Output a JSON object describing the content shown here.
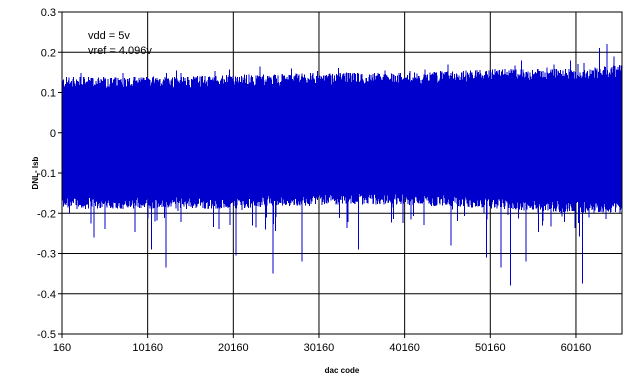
{
  "chart_data": {
    "type": "line",
    "title": "",
    "xlabel": "dac code",
    "ylabel": "DNL- lsb",
    "xlim": [
      160,
      65535
    ],
    "ylim": [
      -0.5,
      0.3
    ],
    "x_ticks": [
      160,
      10160,
      20160,
      30160,
      40160,
      50160,
      60160
    ],
    "x_tick_labels": [
      "160",
      "10160",
      "20160",
      "30160",
      "40160",
      "50160",
      "60160"
    ],
    "y_ticks": [
      0.3,
      0.2,
      0.1,
      0,
      -0.1,
      -0.2,
      -0.3,
      -0.4,
      -0.5
    ],
    "y_tick_labels": [
      "0.3",
      "0.2",
      "0.1",
      "0",
      "-0.1",
      "-0.2",
      "-0.3",
      "-0.4",
      "-0.5"
    ],
    "grid": true,
    "annotations": [
      "vdd = 5v",
      "vref = 4.096v"
    ],
    "series": [
      {
        "color": "#0000CC",
        "envelope": {
          "x": [
            160,
            10160,
            20160,
            30160,
            40160,
            50160,
            60160,
            65535
          ],
          "upper": [
            0.13,
            0.13,
            0.135,
            0.14,
            0.14,
            0.15,
            0.15,
            0.16
          ],
          "lower": [
            -0.18,
            -0.18,
            -0.18,
            -0.17,
            -0.17,
            -0.18,
            -0.19,
            -0.19
          ]
        },
        "peaks": [
          {
            "x": 13500,
            "y": 0.155
          },
          {
            "x": 45200,
            "y": 0.17
          },
          {
            "x": 53800,
            "y": 0.18
          },
          {
            "x": 59500,
            "y": 0.18
          },
          {
            "x": 62900,
            "y": 0.21
          },
          {
            "x": 63800,
            "y": 0.22
          },
          {
            "x": 64600,
            "y": 0.19
          }
        ],
        "troughs": [
          {
            "x": 3900,
            "y": -0.26
          },
          {
            "x": 10600,
            "y": -0.29
          },
          {
            "x": 12300,
            "y": -0.335
          },
          {
            "x": 20500,
            "y": -0.305
          },
          {
            "x": 24800,
            "y": -0.35
          },
          {
            "x": 28200,
            "y": -0.32
          },
          {
            "x": 34800,
            "y": -0.29
          },
          {
            "x": 45600,
            "y": -0.28
          },
          {
            "x": 49700,
            "y": -0.31
          },
          {
            "x": 51400,
            "y": -0.335
          },
          {
            "x": 52500,
            "y": -0.38
          },
          {
            "x": 54300,
            "y": -0.32
          },
          {
            "x": 60900,
            "y": -0.375
          }
        ]
      }
    ]
  }
}
